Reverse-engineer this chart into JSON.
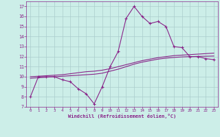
{
  "x": [
    0,
    1,
    2,
    3,
    4,
    5,
    6,
    7,
    8,
    9,
    10,
    11,
    12,
    13,
    14,
    15,
    16,
    17,
    18,
    19,
    20,
    21,
    22,
    23
  ],
  "windchill": [
    8,
    10,
    10,
    10,
    9.7,
    9.5,
    8.8,
    8.3,
    7.3,
    9,
    11,
    12.5,
    15.8,
    17,
    16,
    15.3,
    15.5,
    15,
    13,
    12.9,
    12,
    12,
    11.8,
    11.7
  ],
  "trend1": [
    10.0,
    10.05,
    10.1,
    10.15,
    10.2,
    10.3,
    10.4,
    10.5,
    10.55,
    10.65,
    10.8,
    11.0,
    11.2,
    11.4,
    11.6,
    11.75,
    11.9,
    12.0,
    12.1,
    12.15,
    12.2,
    12.25,
    12.3,
    12.35
  ],
  "trend2": [
    9.85,
    9.9,
    9.95,
    10.0,
    10.05,
    10.1,
    10.15,
    10.2,
    10.25,
    10.35,
    10.55,
    10.75,
    11.0,
    11.25,
    11.45,
    11.6,
    11.75,
    11.85,
    11.92,
    11.97,
    12.0,
    12.02,
    12.04,
    12.06
  ],
  "line_color": "#882288",
  "bg_color": "#cceee8",
  "grid_color": "#aacccc",
  "xlabel": "Windchill (Refroidissement éolien,°C)",
  "xlim": [
    -0.5,
    23.5
  ],
  "ylim": [
    7,
    17.5
  ],
  "yticks": [
    7,
    8,
    9,
    10,
    11,
    12,
    13,
    14,
    15,
    16,
    17
  ],
  "xticks": [
    0,
    1,
    2,
    3,
    4,
    5,
    6,
    7,
    8,
    9,
    10,
    11,
    12,
    13,
    14,
    15,
    16,
    17,
    18,
    19,
    20,
    21,
    22,
    23
  ]
}
